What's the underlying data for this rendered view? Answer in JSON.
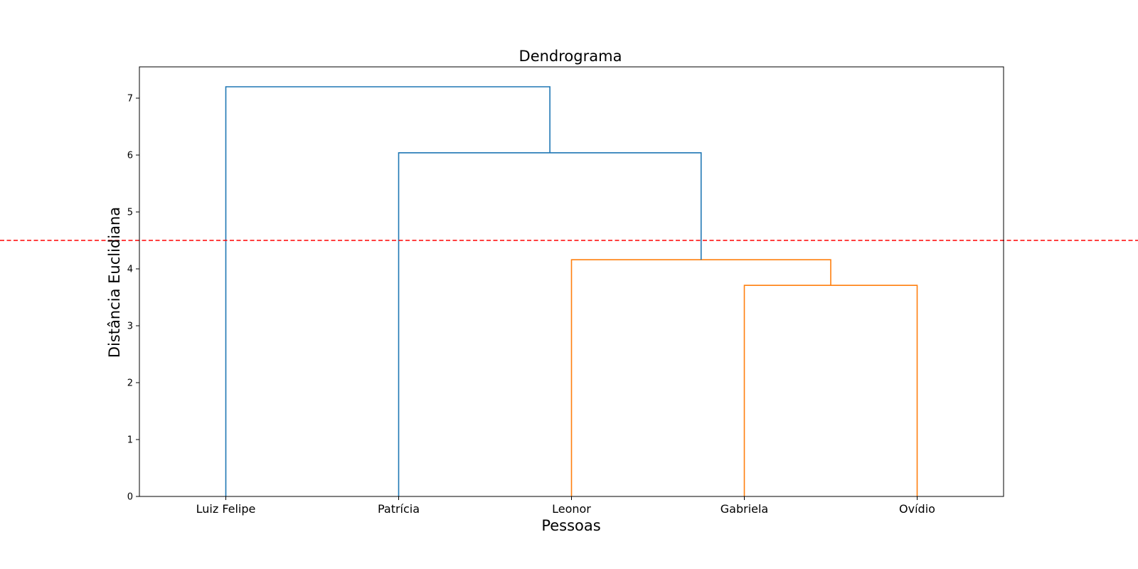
{
  "chart_data": {
    "type": "dendrogram",
    "title": "Dendrograma",
    "xlabel": "Pessoas",
    "ylabel": "Distância Euclidiana",
    "ylim": [
      0,
      7.55
    ],
    "yticks": [
      0,
      1,
      2,
      3,
      4,
      5,
      6,
      7
    ],
    "leaves": [
      "Luiz Felipe",
      "Patrícia",
      "Leonor",
      "Gabriela",
      "Ovídio"
    ],
    "merges": [
      {
        "left": "Gabriela",
        "right": "Ovídio",
        "distance": 3.71,
        "color": "#ff7f0e"
      },
      {
        "left": "Leonor",
        "right": "C1",
        "distance": 4.16,
        "color": "#ff7f0e"
      },
      {
        "left": "Patrícia",
        "right": "C2",
        "distance": 6.04,
        "color": "#1f77b4"
      },
      {
        "left": "Luiz Felipe",
        "right": "C3",
        "distance": 7.2,
        "color": "#1f77b4"
      }
    ],
    "cut_line": {
      "value": 4.5,
      "color": "#ff0000",
      "style": "dashed"
    },
    "grid": false,
    "colors": {
      "cluster_a": "#1f77b4",
      "cluster_b": "#ff7f0e",
      "cut": "#ff0000"
    }
  }
}
